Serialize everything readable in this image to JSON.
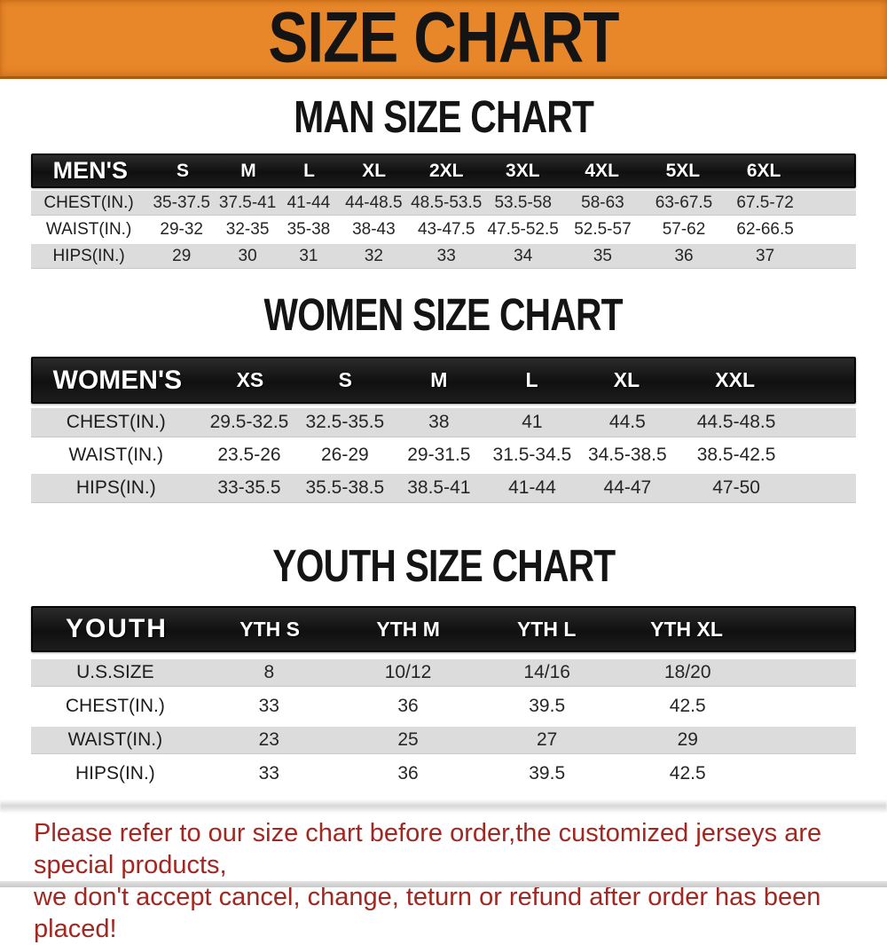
{
  "banner": {
    "title": "SIZE CHART",
    "bg_color": "#E8862A",
    "border_color": "#A95B12",
    "text_color": "#141414"
  },
  "charts": {
    "men": {
      "title": "MAN SIZE CHART",
      "group_label": "MEN'S",
      "columns": [
        "S",
        "M",
        "L",
        "XL",
        "2XL",
        "3XL",
        "4XL",
        "5XL",
        "6XL"
      ],
      "rows": [
        {
          "label": "CHEST(IN.)",
          "values": [
            "35-37.5",
            "37.5-41",
            "41-44",
            "44-48.5",
            "48.5-53.5",
            "53.5-58",
            "58-63",
            "63-67.5",
            "67.5-72"
          ]
        },
        {
          "label": "WAIST(IN.)",
          "values": [
            "29-32",
            "32-35",
            "35-38",
            "38-43",
            "43-47.5",
            "47.5-52.5",
            "52.5-57",
            "57-62",
            "62-66.5"
          ]
        },
        {
          "label": "HIPS(IN.)",
          "values": [
            "29",
            "30",
            "31",
            "32",
            "33",
            "34",
            "35",
            "36",
            "37"
          ]
        }
      ]
    },
    "women": {
      "title": "WOMEN SIZE CHART",
      "group_label": "WOMEN'S",
      "columns": [
        "XS",
        "S",
        "M",
        "L",
        "XL",
        "XXL"
      ],
      "rows": [
        {
          "label": "CHEST(IN.)",
          "values": [
            "29.5-32.5",
            "32.5-35.5",
            "38",
            "41",
            "44.5",
            "44.5-48.5"
          ]
        },
        {
          "label": "WAIST(IN.)",
          "values": [
            "23.5-26",
            "26-29",
            "29-31.5",
            "31.5-34.5",
            "34.5-38.5",
            "38.5-42.5"
          ]
        },
        {
          "label": "HIPS(IN.)",
          "values": [
            "33-35.5",
            "35.5-38.5",
            "38.5-41",
            "41-44",
            "44-47",
            "47-50"
          ]
        }
      ]
    },
    "youth": {
      "title": "YOUTH SIZE CHART",
      "group_label": "YOUTH",
      "columns": [
        "YTH S",
        "YTH M",
        "YTH L",
        "YTH XL"
      ],
      "rows": [
        {
          "label": "U.S.SIZE",
          "values": [
            "8",
            "10/12",
            "14/16",
            "18/20"
          ]
        },
        {
          "label": "CHEST(IN.)",
          "values": [
            "33",
            "36",
            "39.5",
            "42.5"
          ]
        },
        {
          "label": "WAIST(IN.)",
          "values": [
            "23",
            "25",
            "27",
            "29"
          ]
        },
        {
          "label": "HIPS(IN.)",
          "values": [
            "33",
            "36",
            "39.5",
            "42.5"
          ]
        }
      ]
    }
  },
  "disclaimer": {
    "line1": "Please refer to our size chart before order,the customized jerseys are special products,",
    "line2": "we don't accept cancel, change, teturn or refund after order has been placed!",
    "color": "#A32721"
  },
  "colors": {
    "row_gray": "#DCDCDC",
    "row_white": "#FFFFFF",
    "header_black": "#161616"
  }
}
